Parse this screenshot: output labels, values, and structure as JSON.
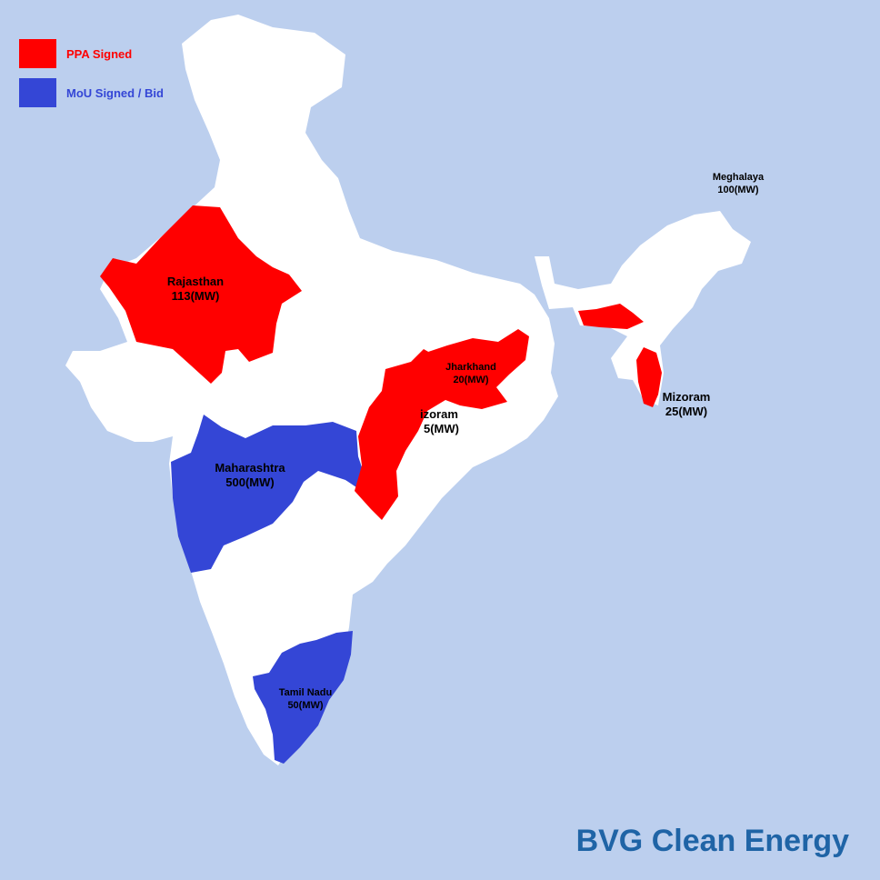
{
  "colors": {
    "sea": "#bccfee",
    "land": "#ffffff",
    "ppa": "#ff0000",
    "mou": "#3446d6",
    "brand": "#1f64a6"
  },
  "legend": [
    {
      "label": "PPA Signed",
      "color": "#ff0000"
    },
    {
      "label": "MoU Signed / Bid",
      "color": "#3446d6"
    }
  ],
  "regions": {
    "rajasthan": {
      "name": "Rajasthan",
      "capacity": "113(MW)",
      "status": "PPA Signed"
    },
    "maharashtra": {
      "name": "Maharashtra",
      "capacity": "500(MW)",
      "status": "MoU Signed / Bid"
    },
    "tamil_nadu": {
      "name": "Tamil Nadu",
      "capacity": "50(MW)",
      "status": "MoU Signed / Bid"
    },
    "jharkhand": {
      "name": "Jharkhand",
      "capacity": "20(MW)",
      "status": "PPA Signed"
    },
    "chhattisgarh": {
      "name": "izoram",
      "capacity": "5(MW)",
      "status": "PPA Signed"
    },
    "meghalaya": {
      "name": "Meghalaya",
      "capacity": "100(MW)",
      "status": "PPA Signed"
    },
    "mizoram": {
      "name": "Mizoram",
      "capacity": "25(MW)",
      "status": "PPA Signed"
    }
  },
  "brand": "BVG Clean Energy"
}
